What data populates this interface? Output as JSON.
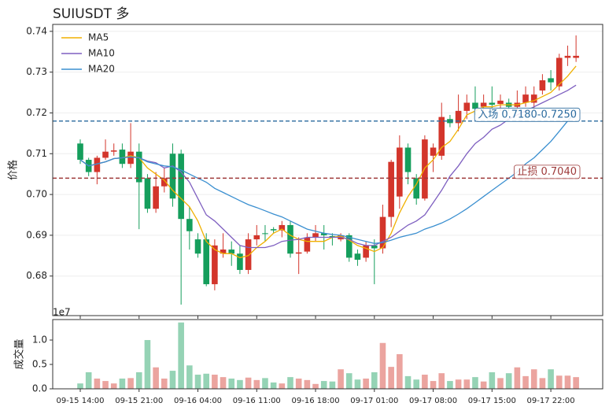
{
  "chart_data": [
    {
      "type": "candlestick",
      "title": "SUIUSDT  多",
      "ylabel": "价格",
      "categories": [
        "09-15 14:00",
        null,
        null,
        null,
        null,
        null,
        null,
        "09-15 21:00",
        null,
        null,
        null,
        null,
        null,
        null,
        "09-16 04:00",
        null,
        null,
        null,
        null,
        null,
        null,
        "09-16 11:00",
        null,
        null,
        null,
        null,
        null,
        null,
        "09-16 18:00",
        null,
        null,
        null,
        null,
        null,
        null,
        "09-17 01:00",
        null,
        null,
        null,
        null,
        null,
        null,
        "09-17 08:00",
        null,
        null,
        null,
        null,
        null,
        null,
        "09-17 15:00",
        null,
        null,
        null,
        null,
        null,
        null,
        "09-17 22:00",
        null,
        null,
        null
      ],
      "open": [
        0.7125,
        0.7085,
        0.7055,
        0.709,
        0.7105,
        0.711,
        0.7075,
        0.7105,
        0.704,
        0.6965,
        0.702,
        0.71,
        0.71,
        0.694,
        0.689,
        0.689,
        0.678,
        0.6855,
        0.6865,
        0.6855,
        0.6815,
        0.689,
        0.6905,
        0.6915,
        0.6912,
        0.6925,
        0.6855,
        0.686,
        0.6895,
        0.6905,
        0.6898,
        0.689,
        0.69,
        0.6855,
        0.6845,
        0.6875,
        0.6868,
        0.6945,
        0.6995,
        0.7115,
        0.704,
        0.699,
        0.7095,
        0.7095,
        0.7185,
        0.7175,
        0.7205,
        0.7225,
        0.7215,
        0.7225,
        0.7222,
        0.7225,
        0.7215,
        0.7225,
        0.7225,
        0.7255,
        0.7285,
        0.7265,
        0.7335,
        0.7335
      ],
      "high": [
        0.7135,
        0.709,
        0.7095,
        0.7135,
        0.7125,
        0.7125,
        0.7175,
        0.7125,
        0.705,
        0.7055,
        0.7065,
        0.7125,
        0.711,
        0.697,
        0.6905,
        0.6905,
        0.689,
        0.6905,
        0.6885,
        0.6875,
        0.6905,
        0.6925,
        0.6925,
        0.692,
        0.6935,
        0.6935,
        0.6895,
        0.6905,
        0.6925,
        0.6925,
        0.6905,
        0.6905,
        0.6905,
        0.6865,
        0.6885,
        0.689,
        0.6975,
        0.7085,
        0.7145,
        0.7125,
        0.705,
        0.7145,
        0.7125,
        0.7225,
        0.7195,
        0.7245,
        0.7245,
        0.7265,
        0.7245,
        0.7265,
        0.7245,
        0.7235,
        0.7255,
        0.7265,
        0.7265,
        0.7295,
        0.7305,
        0.7345,
        0.7365,
        0.739
      ],
      "low": [
        0.7075,
        0.7045,
        0.7025,
        0.7085,
        0.7095,
        0.7065,
        0.7065,
        0.6915,
        0.6955,
        0.6955,
        0.7005,
        0.697,
        0.673,
        0.6865,
        0.6845,
        0.6775,
        0.6765,
        0.6845,
        0.6825,
        0.6805,
        0.6805,
        0.6875,
        0.6885,
        0.6905,
        0.6895,
        0.6845,
        0.6805,
        0.6855,
        0.6885,
        0.6865,
        0.6875,
        0.6885,
        0.6835,
        0.6825,
        0.6835,
        0.678,
        0.6855,
        0.692,
        0.6965,
        0.7025,
        0.6975,
        0.6985,
        0.7055,
        0.7085,
        0.7165,
        0.7155,
        0.7185,
        0.7195,
        0.7195,
        0.7205,
        0.7205,
        0.7205,
        0.7205,
        0.7215,
        0.7205,
        0.7245,
        0.7255,
        0.7255,
        0.7315,
        0.7325
      ],
      "close": [
        0.7085,
        0.7055,
        0.709,
        0.7105,
        0.7108,
        0.7075,
        0.7105,
        0.703,
        0.6965,
        0.702,
        0.704,
        0.699,
        0.694,
        0.691,
        0.6855,
        0.678,
        0.6875,
        0.6865,
        0.6855,
        0.6815,
        0.689,
        0.69,
        0.6903,
        0.6912,
        0.6925,
        0.6855,
        0.6858,
        0.6895,
        0.6905,
        0.69,
        0.6895,
        0.69,
        0.6845,
        0.684,
        0.6875,
        0.6868,
        0.6945,
        0.708,
        0.7115,
        0.7055,
        0.699,
        0.7135,
        0.7115,
        0.719,
        0.7175,
        0.7205,
        0.7225,
        0.721,
        0.7225,
        0.722,
        0.723,
        0.7215,
        0.7225,
        0.7245,
        0.7245,
        0.728,
        0.7275,
        0.7335,
        0.734,
        0.734
      ],
      "up_color": "#d3352b",
      "down_color": "#159e5c",
      "series": [
        {
          "name": "MA5",
          "color": "#f0b000",
          "values": [
            0.7085,
            0.707,
            0.7075,
            0.708,
            0.7088,
            0.709,
            0.7095,
            0.709,
            0.7065,
            0.705,
            0.7035,
            0.701,
            0.699,
            0.697,
            0.6935,
            0.6885,
            0.6865,
            0.6855,
            0.6855,
            0.6845,
            0.685,
            0.687,
            0.6885,
            0.6905,
            0.6915,
            0.69,
            0.689,
            0.6885,
            0.6885,
            0.6885,
            0.6895,
            0.6898,
            0.6888,
            0.6875,
            0.6868,
            0.686,
            0.687,
            0.6905,
            0.6955,
            0.6995,
            0.7025,
            0.7065,
            0.7085,
            0.7115,
            0.713,
            0.716,
            0.7195,
            0.7205,
            0.7215,
            0.7215,
            0.722,
            0.722,
            0.722,
            0.7225,
            0.723,
            0.724,
            0.725,
            0.727,
            0.729,
            0.7315
          ]
        },
        {
          "name": "MA10",
          "color": "#7e5fc0",
          "values": [
            0.7085,
            0.707,
            0.7075,
            0.708,
            0.7088,
            0.709,
            0.7092,
            0.709,
            0.7082,
            0.7078,
            0.7065,
            0.707,
            0.7055,
            0.703,
            0.699,
            0.695,
            0.6935,
            0.6915,
            0.6895,
            0.6875,
            0.687,
            0.687,
            0.687,
            0.6875,
            0.6885,
            0.6888,
            0.689,
            0.6895,
            0.6895,
            0.6895,
            0.6895,
            0.6895,
            0.689,
            0.688,
            0.6875,
            0.6875,
            0.6885,
            0.6895,
            0.691,
            0.6925,
            0.6935,
            0.695,
            0.698,
            0.701,
            0.7045,
            0.707,
            0.71,
            0.7125,
            0.714,
            0.716,
            0.717,
            0.7185,
            0.7195,
            0.7205,
            0.7215,
            0.7225,
            0.7235,
            0.7245,
            0.7255,
            0.7268
          ]
        },
        {
          "name": "MA20",
          "color": "#3a8fd0",
          "values": [
            0.7085,
            0.707,
            0.7075,
            0.708,
            0.7088,
            0.709,
            0.7092,
            0.709,
            0.708,
            0.7075,
            0.707,
            0.7068,
            0.706,
            0.705,
            0.704,
            0.703,
            0.7015,
            0.7005,
            0.6995,
            0.6985,
            0.6975,
            0.6968,
            0.696,
            0.6952,
            0.6945,
            0.6935,
            0.6925,
            0.6915,
            0.691,
            0.6905,
            0.6902,
            0.69,
            0.6895,
            0.689,
            0.6885,
            0.688,
            0.6882,
            0.6888,
            0.6895,
            0.69,
            0.6905,
            0.6915,
            0.6922,
            0.693,
            0.694,
            0.6952,
            0.6965,
            0.698,
            0.6995,
            0.701,
            0.7025,
            0.704,
            0.7055,
            0.7075,
            0.709,
            0.711,
            0.713,
            0.7155,
            0.718,
            0.7205
          ]
        }
      ],
      "hlines": [
        {
          "value": 0.718,
          "label": "入场 0.7180-0.7250",
          "color": "#2a6a9e"
        },
        {
          "value": 0.704,
          "label": "止损 0.7040",
          "color": "#9e3a3a"
        }
      ],
      "ylim": [
        0.6703,
        0.7417
      ],
      "yticks": [
        0.68,
        0.69,
        {
          "value": 0.7,
          "label": "0.70"
        },
        0.71,
        0.72,
        0.73,
        0.74
      ],
      "grid": true,
      "legend": "upper left"
    },
    {
      "type": "bar",
      "ylabel": "成交量",
      "offset_label": "1e7",
      "values": [
        0.11,
        0.34,
        0.21,
        0.16,
        0.11,
        0.21,
        0.22,
        0.34,
        1.0,
        0.44,
        0.21,
        0.37,
        1.36,
        0.48,
        0.29,
        0.31,
        0.29,
        0.24,
        0.21,
        0.18,
        0.23,
        0.18,
        0.22,
        0.13,
        0.11,
        0.24,
        0.21,
        0.18,
        0.1,
        0.16,
        0.15,
        0.4,
        0.32,
        0.19,
        0.21,
        0.34,
        0.94,
        0.45,
        0.71,
        0.26,
        0.19,
        0.29,
        0.16,
        0.32,
        0.16,
        0.19,
        0.19,
        0.24,
        0.15,
        0.34,
        0.22,
        0.32,
        0.44,
        0.26,
        0.4,
        0.22,
        0.4,
        0.27,
        0.27,
        0.24
      ],
      "ylim": [
        0,
        1.42
      ],
      "yticks": [
        {
          "value": 0,
          "label": "0.0"
        },
        {
          "value": 0.5,
          "label": "0.5"
        },
        {
          "value": 1,
          "label": "1.0"
        }
      ]
    }
  ]
}
